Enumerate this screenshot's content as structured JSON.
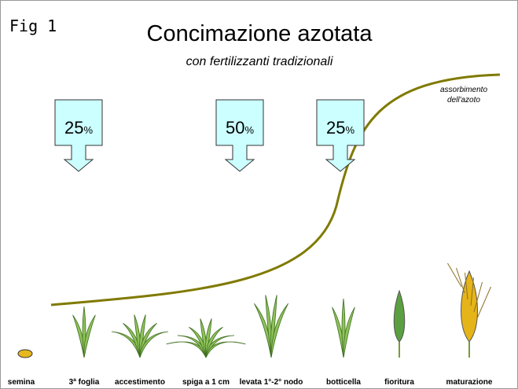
{
  "figure_label": "Fig 1",
  "title": "Concimazione azotata",
  "subtitle": "con fertilizzanti tradizionali",
  "curve_label": [
    "assorbimento",
    "dell'azoto"
  ],
  "doses": [
    {
      "amount": "25",
      "unit": "%"
    },
    {
      "amount": "50",
      "unit": "%"
    },
    {
      "amount": "25",
      "unit": "%"
    }
  ],
  "stages": [
    "semina",
    "3ª foglia",
    "accestimento",
    "spiga a 1 cm",
    "levata 1°-2° nodo",
    "botticella",
    "fioritura",
    "maturazione"
  ]
}
